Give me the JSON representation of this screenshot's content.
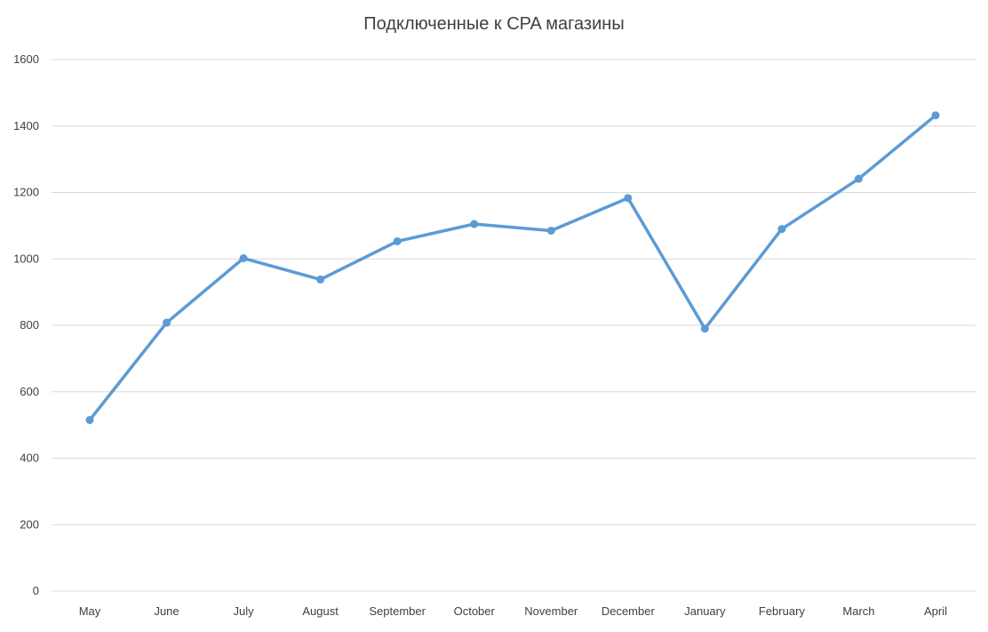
{
  "chart_data": {
    "type": "line",
    "title": "Подключенные к CPA магазины",
    "xlabel": "",
    "ylabel": "",
    "categories": [
      "May",
      "June",
      "July",
      "August",
      "September",
      "October",
      "November",
      "December",
      "January",
      "February",
      "March",
      "April"
    ],
    "series": [
      {
        "values": [
          515,
          808,
          1002,
          938,
          1053,
          1105,
          1085,
          1183,
          790,
          1090,
          1241,
          1432
        ]
      }
    ],
    "ylim": [
      0,
      1600
    ],
    "yticks": [
      0,
      200,
      400,
      600,
      800,
      1000,
      1200,
      1400,
      1600
    ],
    "grid": true,
    "legend": "none",
    "colors": {
      "line": "#5b9bd5",
      "grid": "#d9d9d9",
      "text": "#404040"
    }
  }
}
